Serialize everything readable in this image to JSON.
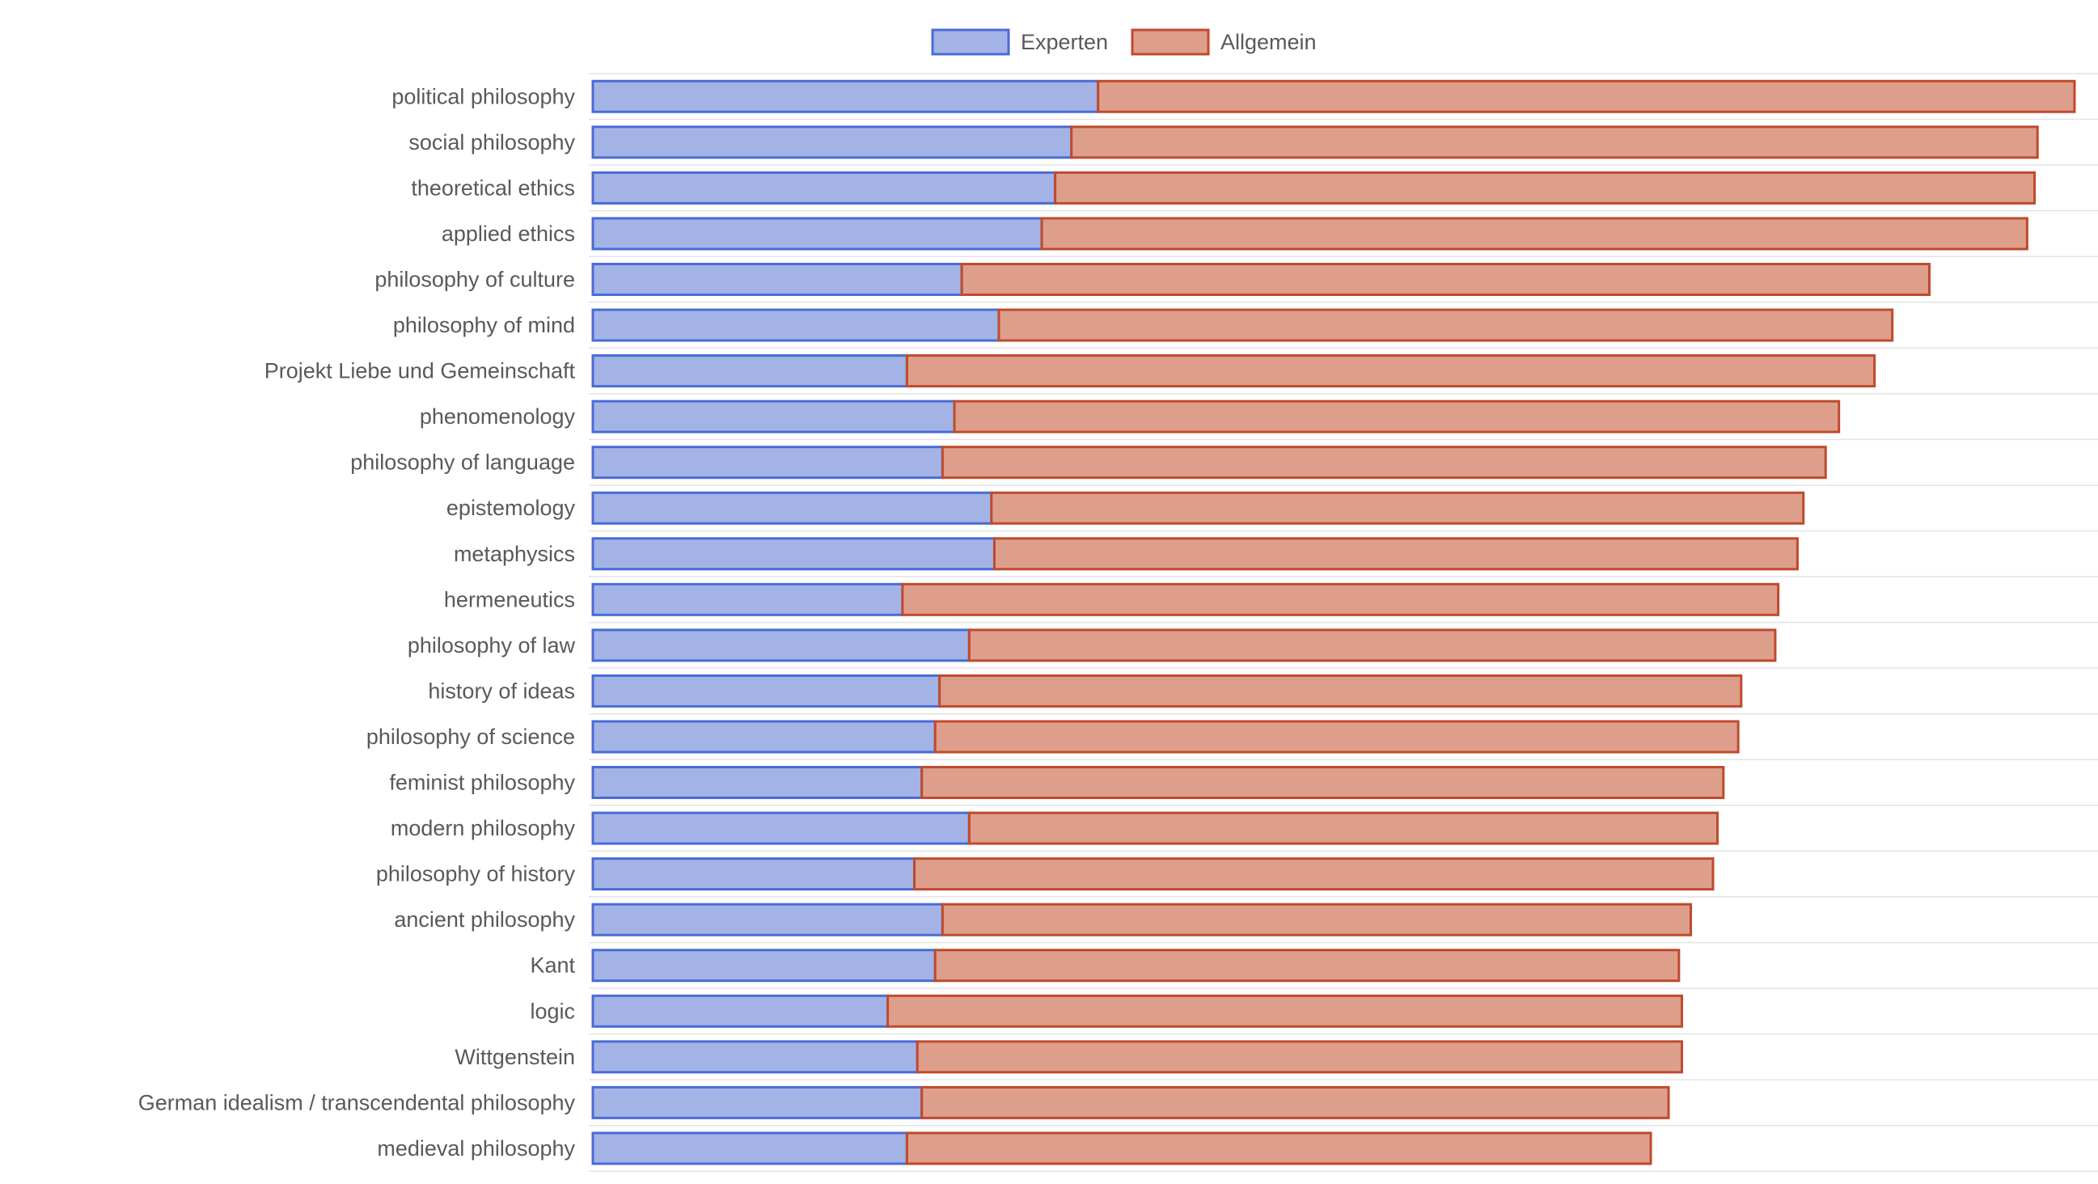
{
  "chart_data": {
    "type": "bar",
    "orientation": "horizontal",
    "stacked": true,
    "categories": [
      "political philosophy",
      "social philosophy",
      "theoretical ethics",
      "applied ethics",
      "philosophy of culture",
      "philosophy of mind",
      "Projekt Liebe und Gemeinschaft",
      "phenomenology",
      "philosophy of language",
      "epistemology",
      "metaphysics",
      "hermeneutics",
      "philosophy of law",
      "history of ideas",
      "philosophy of science",
      "feminist philosophy",
      "modern philosophy",
      "philosophy of history",
      "ancient philosophy",
      "Kant",
      "logic",
      "Wittgenstein",
      "German idealism / transcendental philosophy",
      "medieval philosophy"
    ],
    "series": [
      {
        "name": "Experten",
        "color": "#a4b3e6",
        "stroke": "#4a6bd6",
        "values": [
          34.1,
          32.3,
          31.2,
          30.3,
          24.9,
          27.4,
          21.2,
          24.4,
          23.6,
          26.9,
          27.1,
          20.9,
          25.4,
          23.4,
          23.1,
          22.2,
          25.4,
          21.7,
          23.6,
          23.1,
          19.9,
          21.9,
          22.2,
          21.2
        ]
      },
      {
        "name": "Allgemein",
        "color": "#dd9f8c",
        "stroke": "#c04a2c",
        "values": [
          65.9,
          65.2,
          66.1,
          66.5,
          65.3,
          60.3,
          65.3,
          59.7,
          59.6,
          54.8,
          54.2,
          59.1,
          54.4,
          54.1,
          54.2,
          54.1,
          50.5,
          53.9,
          50.5,
          50.2,
          53.6,
          51.6,
          50.4,
          50.2
        ]
      }
    ],
    "xlim": [
      0,
      100
    ],
    "legend_position": "top-center",
    "title": "",
    "xlabel": "",
    "ylabel": "",
    "grid": "horizontal"
  }
}
